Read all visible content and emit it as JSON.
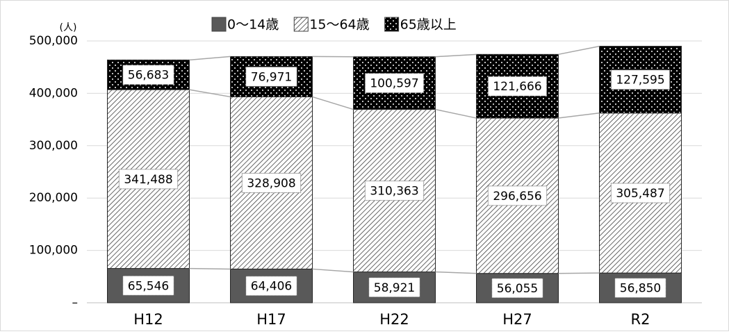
{
  "chart_data": {
    "type": "stacked_bar",
    "y_axis_label": "(人)",
    "categories": [
      "H12",
      "H17",
      "H22",
      "H27",
      "R2"
    ],
    "series": [
      {
        "name": "0～14歳",
        "color": "#595959",
        "pattern": "solid",
        "values": [
          65546,
          64406,
          58921,
          56055,
          56850
        ],
        "value_labels": [
          "65,546",
          "64,406",
          "58,921",
          "56,055",
          "56,850"
        ]
      },
      {
        "name": "15～64歳",
        "color": "#404040",
        "pattern": "hatch",
        "values": [
          341488,
          328908,
          310363,
          296656,
          305487
        ],
        "value_labels": [
          "341,488",
          "328,908",
          "310,363",
          "296,656",
          "305,487"
        ]
      },
      {
        "name": "65歳以上",
        "color": "#000000",
        "pattern": "dots",
        "values": [
          56683,
          76971,
          100597,
          121666,
          127595
        ],
        "value_labels": [
          "56,683",
          "76,971",
          "100,597",
          "121,666",
          "127,595"
        ]
      }
    ],
    "ylim": [
      0,
      500000
    ],
    "yticks": [
      {
        "value": 0,
        "label": "–"
      },
      {
        "value": 100000,
        "label": "100,000"
      },
      {
        "value": 200000,
        "label": "200,000"
      },
      {
        "value": 300000,
        "label": "300,000"
      },
      {
        "value": 400000,
        "label": "400,000"
      },
      {
        "value": 500000,
        "label": "500,000"
      }
    ],
    "grid": true,
    "legend": "top",
    "series_lines": true
  }
}
